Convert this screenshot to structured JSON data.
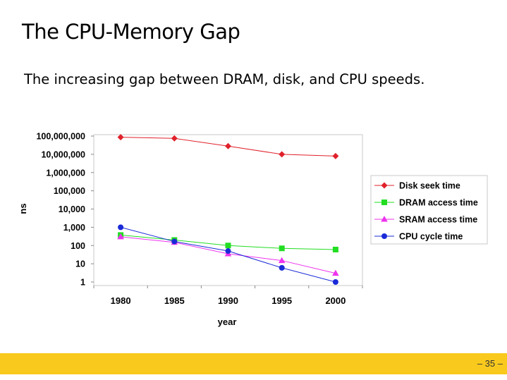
{
  "slide": {
    "title": "The CPU-Memory Gap",
    "subtitle": "The increasing gap between DRAM, disk, and CPU speeds.",
    "page_number": "– 35 –"
  },
  "colors": {
    "footer": "#f9ca1d",
    "disk": "#e0212b",
    "dram": "#22dd22",
    "sram": "#ee33ee",
    "cpu": "#1a2ad8"
  },
  "chart_data": {
    "type": "line",
    "title": "",
    "xlabel": "year",
    "ylabel": "ns",
    "yscale": "log",
    "ylim": [
      1,
      100000000
    ],
    "yticks": [
      1,
      10,
      100,
      1000,
      10000,
      100000,
      1000000,
      10000000,
      100000000
    ],
    "ytick_labels": [
      "1",
      "10",
      "100",
      "1,000",
      "10,000",
      "100,000",
      "1,000,000",
      "10,000,000",
      "100,000,000"
    ],
    "categories": [
      "1980",
      "1985",
      "1990",
      "1995",
      "2000"
    ],
    "grid": false,
    "legend_position": "right",
    "series": [
      {
        "name": "Disk seek time",
        "marker": "diamond",
        "color": "#e0212b",
        "values": [
          87000000,
          75000000,
          28000000,
          10000000,
          8000000
        ]
      },
      {
        "name": "DRAM access time",
        "marker": "square",
        "color": "#22dd22",
        "values": [
          375,
          200,
          100,
          70,
          60
        ]
      },
      {
        "name": "SRAM access time",
        "marker": "triangle",
        "color": "#ee33ee",
        "values": [
          300,
          150,
          35,
          15,
          3
        ]
      },
      {
        "name": "CPU cycle time",
        "marker": "circle",
        "color": "#1a2ad8",
        "values": [
          1000,
          166,
          50,
          6,
          1
        ]
      }
    ]
  }
}
